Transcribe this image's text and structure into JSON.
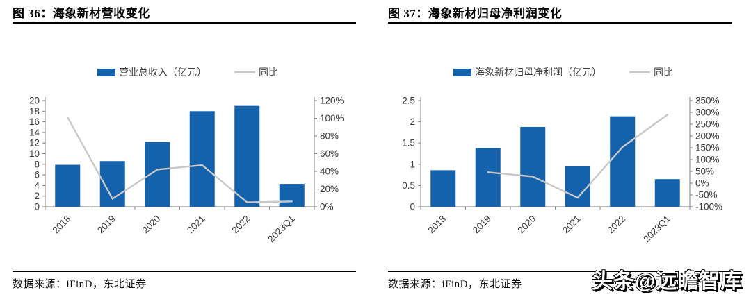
{
  "colors": {
    "bar": "#1461ac",
    "line": "#c8c8c8",
    "axis": "#808080",
    "tick_text": "#3a3a3a",
    "title_text": "#000000"
  },
  "watermark": "头条@远瞻智库",
  "chart_data": [
    {
      "type": "bar+line",
      "title": "图 36：海象新材营收变化",
      "source": "数据来源：iFinD，东北证券",
      "categories": [
        "2018",
        "2019",
        "2020",
        "2021",
        "2022",
        "2023Q1"
      ],
      "series": [
        {
          "name": "营业总收入（亿元）",
          "type": "bar",
          "axis": "left",
          "values": [
            7.9,
            8.6,
            12.2,
            18.0,
            19.0,
            4.3
          ]
        },
        {
          "name": "同比",
          "type": "line",
          "axis": "right",
          "values_pct": [
            101,
            9,
            42,
            47,
            5,
            6
          ]
        }
      ],
      "left_axis": {
        "min": 0,
        "max": 20,
        "step": 2
      },
      "right_axis": {
        "min": 0,
        "max": 120,
        "step": 20,
        "unit": "%"
      },
      "legend_position": "top",
      "grid": false
    },
    {
      "type": "bar+line",
      "title": "图 37：海象新材归母净利润变化",
      "source": "数据来源：iFinD，东北证券",
      "categories": [
        "2018",
        "2019",
        "2020",
        "2021",
        "2022",
        "2023Q1"
      ],
      "series": [
        {
          "name": "海象新材归母净利润（亿元）",
          "type": "bar",
          "axis": "left",
          "values": [
            0.86,
            1.38,
            1.88,
            0.95,
            2.13,
            0.65
          ]
        },
        {
          "name": "同比",
          "type": "line",
          "axis": "right",
          "values_pct": [
            null,
            46,
            28,
            -62,
            153,
            290
          ]
        }
      ],
      "left_axis": {
        "min": 0,
        "max": 2.5,
        "step": 0.5
      },
      "right_axis": {
        "min": -100,
        "max": 350,
        "step": 50,
        "unit": "%"
      },
      "legend_position": "top",
      "grid": false
    }
  ]
}
